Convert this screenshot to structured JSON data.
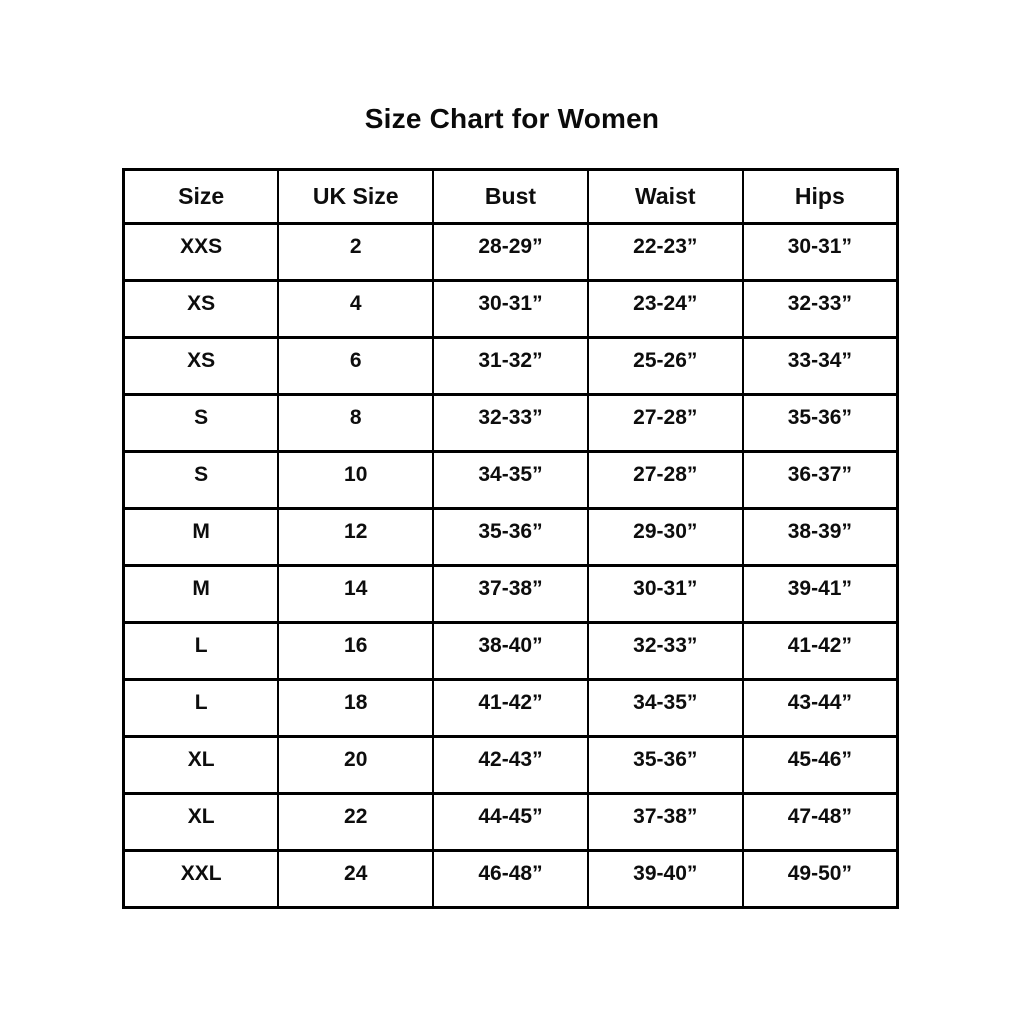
{
  "title": "Size Chart for Women",
  "chart_data": {
    "type": "table",
    "title": "Size Chart for Women",
    "headers": [
      "Size",
      "UK Size",
      "Bust",
      "Waist",
      "Hips"
    ],
    "rows": [
      [
        "XXS",
        "2",
        "28-29”",
        "22-23”",
        "30-31”"
      ],
      [
        "XS",
        "4",
        "30-31”",
        "23-24”",
        "32-33”"
      ],
      [
        "XS",
        "6",
        "31-32”",
        "25-26”",
        "33-34”"
      ],
      [
        "S",
        "8",
        "32-33”",
        "27-28”",
        "35-36”"
      ],
      [
        "S",
        "10",
        "34-35”",
        "27-28”",
        "36-37”"
      ],
      [
        "M",
        "12",
        "35-36”",
        "29-30”",
        "38-39”"
      ],
      [
        "M",
        "14",
        "37-38”",
        "30-31”",
        "39-41”"
      ],
      [
        "L",
        "16",
        "38-40”",
        "32-33”",
        "41-42”"
      ],
      [
        "L",
        "18",
        "41-42”",
        "34-35”",
        "43-44”"
      ],
      [
        "XL",
        "20",
        "42-43”",
        "35-36”",
        "45-46”"
      ],
      [
        "XL",
        "22",
        "44-45”",
        "37-38”",
        "47-48”"
      ],
      [
        "XXL",
        "24",
        "46-48”",
        "39-40”",
        "49-50”"
      ]
    ],
    "layout": {
      "grid": true,
      "border_color": "#000000",
      "text_color": "#0d0d0d",
      "background": "#ffffff"
    }
  }
}
